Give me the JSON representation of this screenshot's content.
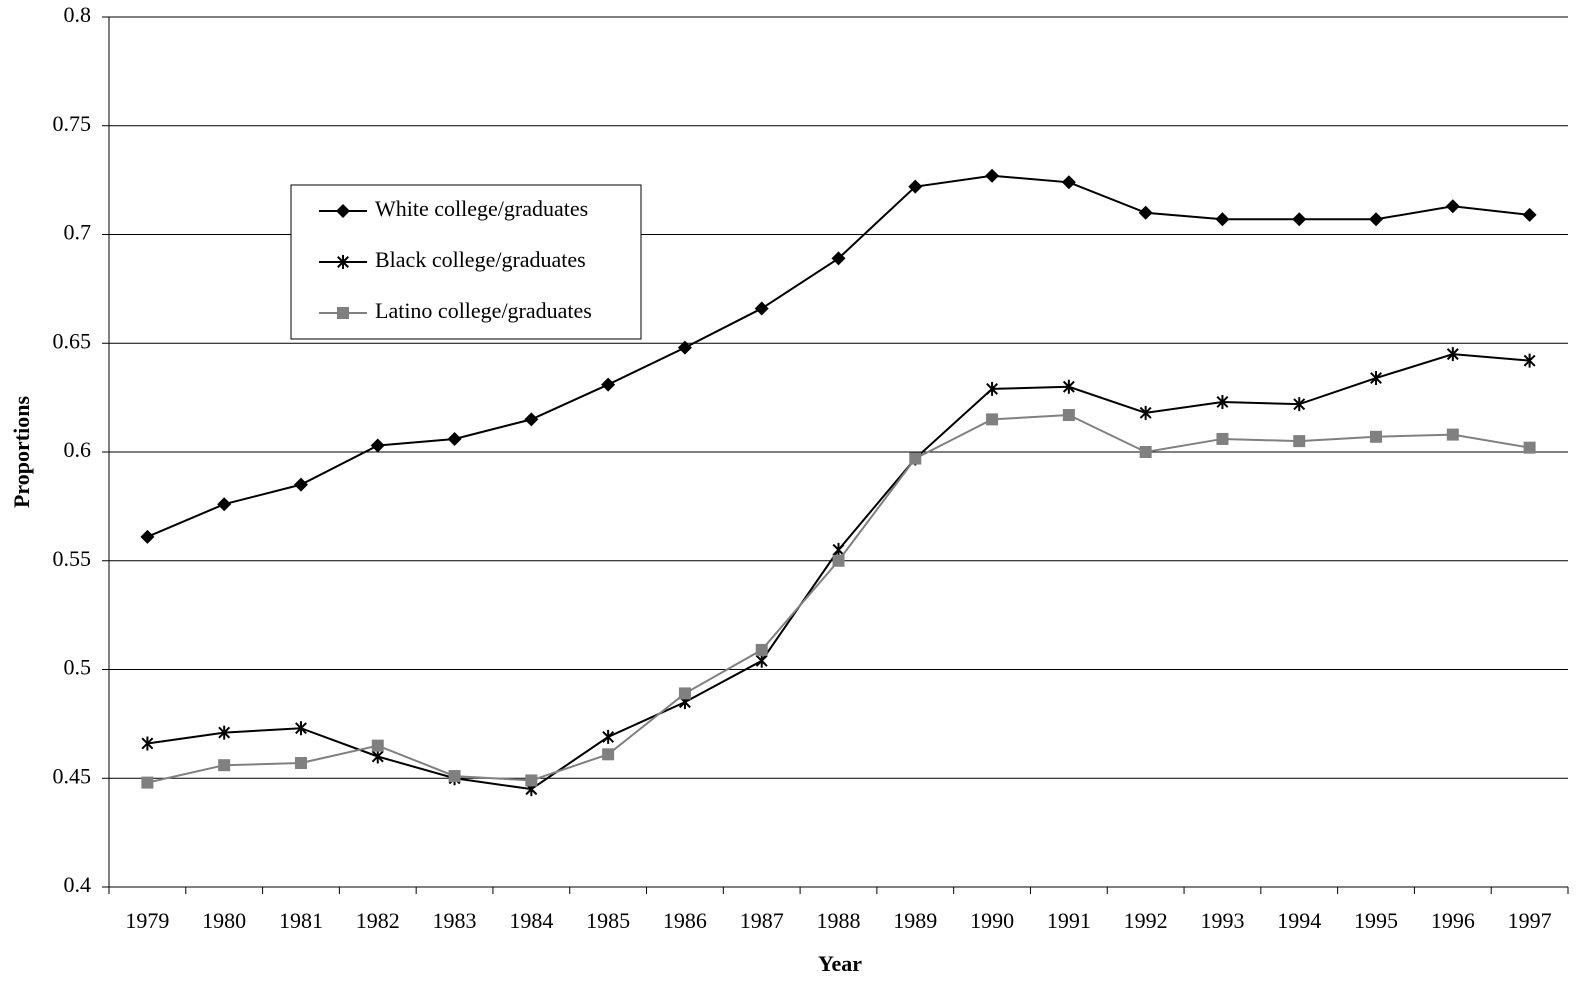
{
  "chart_data": {
    "type": "line",
    "x_label": "Year",
    "y_label": "Proportions",
    "categories": [
      "1979",
      "1980",
      "1981",
      "1982",
      "1983",
      "1984",
      "1985",
      "1986",
      "1987",
      "1988",
      "1989",
      "1990",
      "1991",
      "1992",
      "1993",
      "1994",
      "1995",
      "1996",
      "1997"
    ],
    "series": [
      {
        "name": "White college/graduates",
        "color": "#000000",
        "marker": "diamond",
        "values": [
          0.561,
          0.576,
          0.585,
          0.603,
          0.606,
          0.615,
          0.631,
          0.648,
          0.666,
          0.689,
          0.722,
          0.727,
          0.724,
          0.71,
          0.707,
          0.707,
          0.707,
          0.713,
          0.709
        ]
      },
      {
        "name": "Black college/graduates",
        "color": "#000000",
        "marker": "star",
        "values": [
          0.466,
          0.471,
          0.473,
          0.46,
          0.45,
          0.445,
          0.469,
          0.485,
          0.504,
          0.555,
          0.597,
          0.629,
          0.63,
          0.618,
          0.623,
          0.622,
          0.634,
          0.645,
          0.642
        ]
      },
      {
        "name": "Latino college/graduates",
        "color": "#808080",
        "marker": "square",
        "values": [
          0.448,
          0.456,
          0.457,
          0.465,
          0.451,
          0.449,
          0.461,
          0.489,
          0.509,
          0.55,
          0.597,
          0.615,
          0.617,
          0.6,
          0.606,
          0.605,
          0.607,
          0.608,
          0.602
        ]
      }
    ],
    "ylim": [
      0.4,
      0.8
    ],
    "yticks": [
      0.4,
      0.45,
      0.5,
      0.55,
      0.6,
      0.65,
      0.7,
      0.75,
      0.8
    ],
    "grid": true,
    "legend": "upper-left"
  }
}
